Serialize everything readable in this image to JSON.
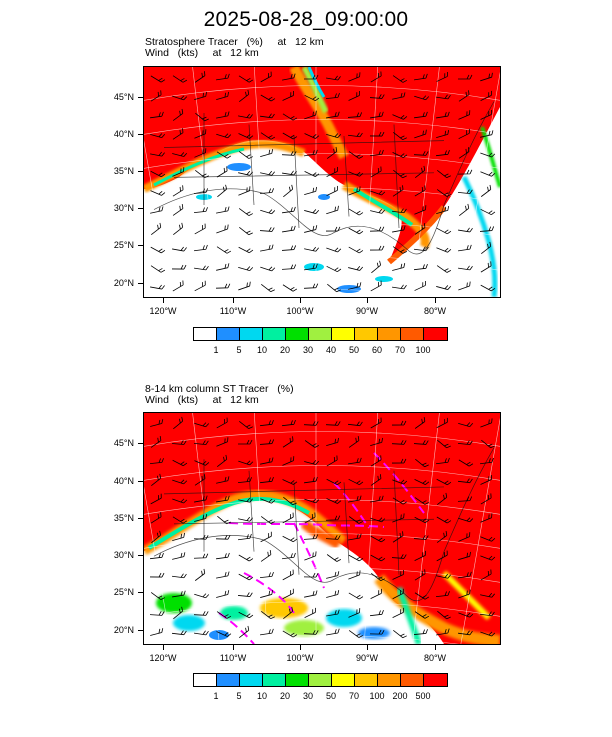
{
  "title": "2025-08-28_09:00:00",
  "panels": [
    {
      "line1": "Stratosphere Tracer   (%)     at   12 km",
      "line2": "Wind   (kts)     at   12 km",
      "colorbar": {
        "colors": [
          "#ffffff",
          "#1f8fff",
          "#00d8f0",
          "#00f0a0",
          "#00e000",
          "#a0f040",
          "#ffff00",
          "#ffc800",
          "#ff9600",
          "#ff5a00",
          "#ff0000"
        ],
        "labels": [
          "1",
          "5",
          "10",
          "20",
          "30",
          "40",
          "50",
          "60",
          "70",
          "100"
        ]
      }
    },
    {
      "line1": "8-14 km column ST Tracer   (%)",
      "line2": "Wind   (kts)     at   12 km",
      "colorbar": {
        "colors": [
          "#ffffff",
          "#1f8fff",
          "#00d8f0",
          "#00f0a0",
          "#00e000",
          "#a0f040",
          "#ffff00",
          "#ffc800",
          "#ff9600",
          "#ff5a00",
          "#ff0000"
        ],
        "labels": [
          "1",
          "5",
          "10",
          "20",
          "30",
          "50",
          "70",
          "100",
          "200",
          "500"
        ]
      }
    }
  ],
  "lat_labels": [
    "45°N",
    "40°N",
    "35°N",
    "30°N",
    "25°N",
    "20°N"
  ],
  "lon_labels": [
    "120°W",
    "110°W",
    "100°W",
    "90°W",
    "80°W"
  ]
}
